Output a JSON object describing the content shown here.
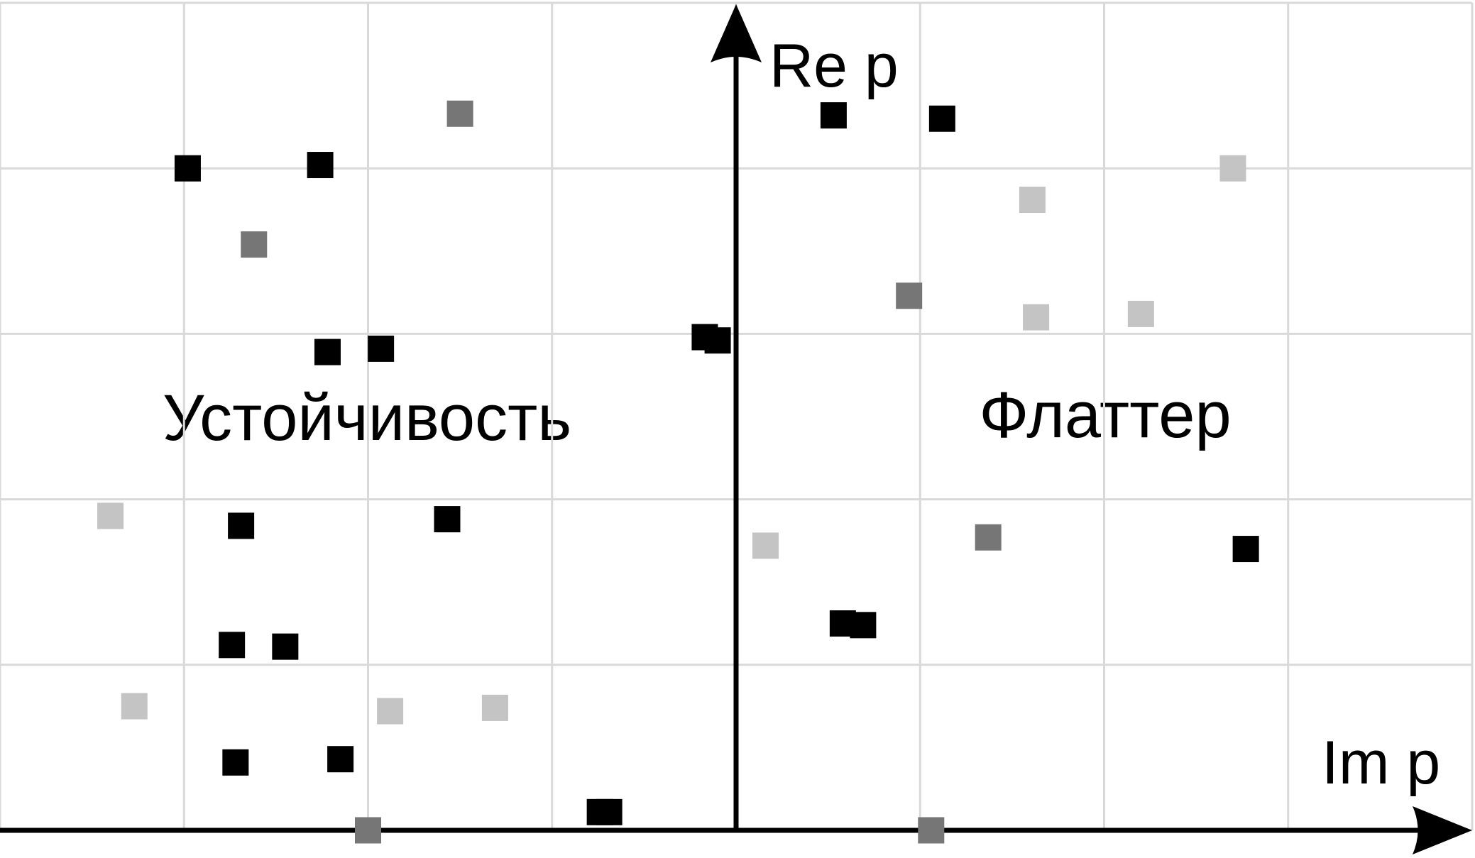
{
  "chart_data": {
    "type": "scatter",
    "x_label": "Im p",
    "y_label": "Re p",
    "annotations": [
      "Устойчивость",
      "Флаттер"
    ],
    "xlim": [
      -4,
      4
    ],
    "ylim": [
      0,
      5
    ],
    "xticks": [
      -4,
      -3,
      -2,
      -1,
      0,
      1,
      2,
      3,
      4
    ],
    "yticks": [
      0,
      1,
      2,
      3,
      4,
      5
    ],
    "grid": true,
    "series": [
      {
        "color": "#000000",
        "x": [
          -2.98,
          -2.26,
          -2.22,
          -1.93,
          -2.69,
          -1.57,
          -2.74,
          -2.45,
          -2.72,
          -2.15,
          -0.74,
          -0.69,
          -0.17,
          -0.1,
          0.53,
          1.12,
          0.58,
          0.69,
          2.77
        ],
        "values": [
          4.0,
          4.02,
          2.89,
          2.91,
          1.84,
          1.88,
          1.12,
          1.11,
          0.41,
          0.43,
          0.11,
          0.11,
          2.98,
          2.96,
          4.32,
          4.3,
          1.25,
          1.24,
          1.7
        ]
      },
      {
        "color": "#767676",
        "x": [
          -1.5,
          -2.62,
          0.94,
          1.37,
          -2.0,
          1.06
        ],
        "values": [
          4.33,
          3.54,
          3.23,
          1.77,
          0.0,
          0.0
        ]
      },
      {
        "color": "#c4c4c4",
        "x": [
          -3.4,
          -3.27,
          -1.88,
          -1.31,
          0.16,
          1.61,
          1.63,
          2.2,
          2.7
        ],
        "values": [
          1.9,
          0.75,
          0.72,
          0.74,
          1.72,
          3.81,
          3.1,
          3.12,
          4.0
        ]
      }
    ]
  }
}
